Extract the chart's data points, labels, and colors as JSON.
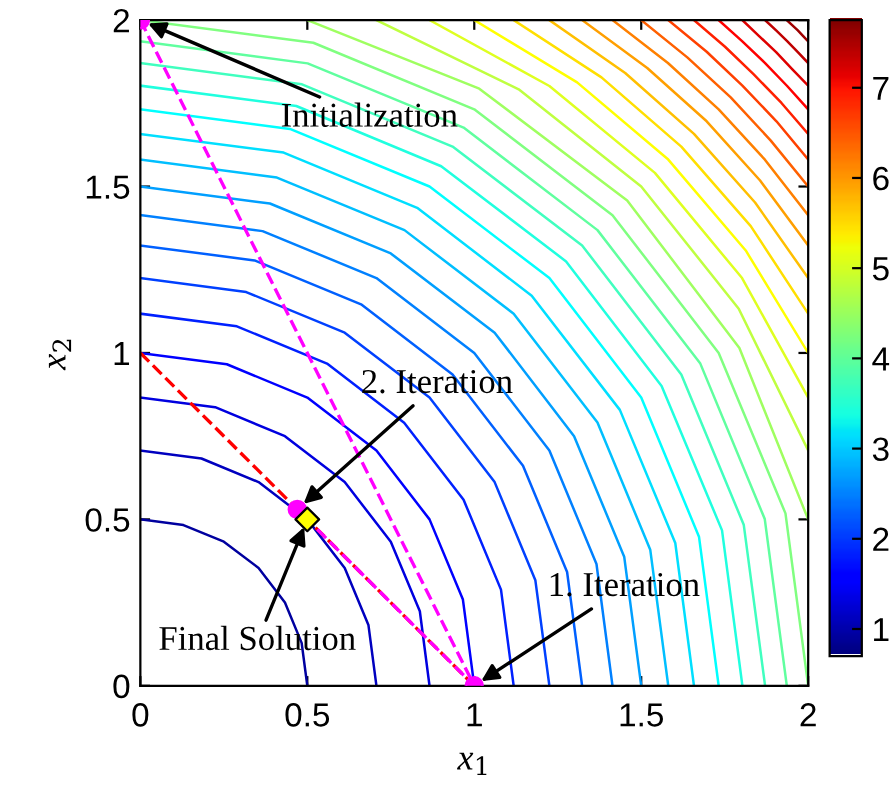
{
  "chart_data": {
    "type": "line",
    "xlabel": "x$_{1}$",
    "ylabel": "x$_{2}$",
    "xlim": [
      0,
      2
    ],
    "ylim": [
      0,
      2
    ],
    "xticks": [
      0,
      0.5,
      1,
      1.5,
      2
    ],
    "yticks": [
      0,
      0.5,
      1,
      1.5,
      2
    ],
    "grid": false,
    "clim": [
      0.7,
      7.75
    ],
    "cticks": [
      1,
      2,
      3,
      4,
      5,
      6,
      7
    ],
    "annotations": [
      {
        "text": "Initialization",
        "x": 0,
        "y": 2
      },
      {
        "text": "2. Iteration",
        "x": 0.47,
        "y": 0.53
      },
      {
        "text": "Final Solution",
        "x": 0.5,
        "y": 0.5
      },
      {
        "text": "1. Iteration",
        "x": 1,
        "y": 0
      }
    ],
    "series": [
      {
        "color": "#00009f",
        "x": [
          0.5,
          0.483,
          0.433,
          0.354,
          0.25,
          0.129,
          0
        ],
        "values": [
          0,
          0.129,
          0.25,
          0.354,
          0.433,
          0.483,
          0.5
        ]
      },
      {
        "color": "#0000bf",
        "x": [
          0.707,
          0.683,
          0.612,
          0.5,
          0.354,
          0.183,
          0
        ],
        "values": [
          0,
          0.183,
          0.354,
          0.5,
          0.612,
          0.683,
          0.707
        ]
      },
      {
        "color": "#0000df",
        "x": [
          0.866,
          0.837,
          0.75,
          0.612,
          0.433,
          0.224,
          0
        ],
        "values": [
          0,
          0.224,
          0.433,
          0.612,
          0.75,
          0.837,
          0.866
        ]
      },
      {
        "color": "#0000ff",
        "x": [
          1,
          0.966,
          0.866,
          0.707,
          0.5,
          0.259,
          0
        ],
        "values": [
          0,
          0.259,
          0.5,
          0.707,
          0.866,
          0.966,
          1
        ]
      },
      {
        "color": "#0020ff",
        "x": [
          1.118,
          1.08,
          0.968,
          0.79,
          0.559,
          0.289,
          0
        ],
        "values": [
          0,
          0.289,
          0.559,
          0.79,
          0.968,
          1.08,
          1.118
        ]
      },
      {
        "color": "#0040ff",
        "x": [
          1.225,
          1.183,
          1.061,
          0.866,
          0.612,
          0.317,
          0
        ],
        "values": [
          0,
          0.317,
          0.612,
          0.866,
          1.061,
          1.183,
          1.225
        ]
      },
      {
        "color": "#0060ff",
        "x": [
          1.323,
          1.278,
          1.146,
          0.935,
          0.661,
          0.342,
          0
        ],
        "values": [
          0,
          0.342,
          0.661,
          0.935,
          1.146,
          1.278,
          1.323
        ]
      },
      {
        "color": "#0080ff",
        "x": [
          1.414,
          1.366,
          1.225,
          1,
          0.707,
          0.366,
          0
        ],
        "values": [
          0,
          0.366,
          0.707,
          1,
          1.225,
          1.366,
          1.414
        ]
      },
      {
        "color": "#009fff",
        "x": [
          1.5,
          1.449,
          1.299,
          1.061,
          0.75,
          0.388,
          0
        ],
        "values": [
          0,
          0.388,
          0.75,
          1.061,
          1.299,
          1.449,
          1.5
        ]
      },
      {
        "color": "#00bfff",
        "x": [
          1.581,
          1.527,
          1.369,
          1.118,
          0.791,
          0.409,
          0
        ],
        "values": [
          0,
          0.409,
          0.791,
          1.118,
          1.369,
          1.527,
          1.581
        ]
      },
      {
        "color": "#00dfff",
        "x": [
          1.658,
          1.602,
          1.436,
          1.172,
          0.829,
          0.429,
          0
        ],
        "values": [
          0,
          0.429,
          0.829,
          1.172,
          1.436,
          1.602,
          1.658
        ]
      },
      {
        "color": "#00ffff",
        "x": [
          1.732,
          1.673,
          1.5,
          1.225,
          0.866,
          0.448,
          0
        ],
        "values": [
          0,
          0.448,
          0.866,
          1.225,
          1.5,
          1.673,
          1.732
        ]
      },
      {
        "color": "#20ffdf",
        "x": [
          1.803,
          1.742,
          1.561,
          1.275,
          0.901,
          0.467,
          0
        ],
        "values": [
          0,
          0.467,
          0.901,
          1.275,
          1.561,
          1.742,
          1.803
        ]
      },
      {
        "color": "#40ffbf",
        "x": [
          1.871,
          1.807,
          1.62,
          1.323,
          0.935,
          0.484,
          0
        ],
        "values": [
          0,
          0.484,
          0.935,
          1.323,
          1.62,
          1.807,
          1.871
        ]
      },
      {
        "color": "#60ff9f",
        "x": [
          1.936,
          1.87,
          1.677,
          1.369,
          0.968,
          0.501,
          0
        ],
        "values": [
          0,
          0.501,
          0.968,
          1.369,
          1.677,
          1.87,
          1.936
        ]
      },
      {
        "color": "#80ff80",
        "x": [
          2,
          1.932,
          1.732,
          1.414,
          1,
          0.518,
          0
        ],
        "values": [
          0,
          0.518,
          1,
          1.414,
          1.732,
          1.932,
          2
        ]
      },
      {
        "color": "#9fff60",
        "x": [
          2,
          1.794,
          1.458,
          1.015,
          0.5
        ],
        "values": [
          0.5,
          1.015,
          1.458,
          1.794,
          2
        ]
      },
      {
        "color": "#bfff40",
        "x": [
          2,
          1.792,
          1.5,
          1.133,
          0.707
        ],
        "values": [
          0.707,
          1.133,
          1.5,
          1.792,
          2
        ]
      },
      {
        "color": "#dfff20",
        "x": [
          2,
          1.802,
          1.541,
          1.225,
          0.866
        ],
        "values": [
          0.866,
          1.225,
          1.541,
          1.802,
          2
        ]
      },
      {
        "color": "#ffff00",
        "x": [
          2,
          1.813,
          1.581,
          1.308,
          1
        ],
        "values": [
          1,
          1.308,
          1.581,
          1.813,
          2
        ]
      },
      {
        "color": "#ffdf00",
        "x": [
          2,
          1.828,
          1.62,
          1.381,
          1.118
        ],
        "values": [
          1.118,
          1.381,
          1.62,
          1.828,
          2
        ]
      },
      {
        "color": "#ffbf00",
        "x": [
          2,
          1.841,
          1.658,
          1.452,
          1.225
        ],
        "values": [
          1.225,
          1.452,
          1.658,
          1.841,
          2
        ]
      },
      {
        "color": "#ff9f00",
        "x": [
          2,
          1.856,
          1.696,
          1.518,
          1.323
        ],
        "values": [
          1.323,
          1.518,
          1.696,
          1.856,
          2
        ]
      },
      {
        "color": "#ff8000",
        "x": [
          2,
          1.871,
          1.732,
          1.58,
          1.414
        ],
        "values": [
          1.414,
          1.58,
          1.732,
          1.871,
          2
        ]
      },
      {
        "color": "#ff6000",
        "x": [
          2,
          1.888,
          1.768,
          1.638,
          1.5
        ],
        "values": [
          1.5,
          1.638,
          1.768,
          1.888,
          2
        ]
      },
      {
        "color": "#ff4000",
        "x": [
          2,
          1.905,
          1.803,
          1.696,
          1.581
        ],
        "values": [
          1.581,
          1.696,
          1.803,
          1.905,
          2
        ]
      },
      {
        "color": "#ff2000",
        "x": [
          2,
          1.92,
          1.837,
          1.751,
          1.658
        ],
        "values": [
          1.658,
          1.751,
          1.837,
          1.92,
          2
        ]
      },
      {
        "color": "#ff0000",
        "x": [
          2,
          1.937,
          1.871,
          1.802,
          1.732
        ],
        "values": [
          1.732,
          1.802,
          1.871,
          1.937,
          2
        ]
      },
      {
        "color": "#df0000",
        "x": [
          2,
          1.952,
          1.904,
          1.853,
          1.803
        ],
        "values": [
          1.803,
          1.853,
          1.904,
          1.952,
          2
        ]
      },
      {
        "color": "#bf0000",
        "x": [
          2,
          1.969,
          1.937,
          1.904,
          1.871
        ],
        "values": [
          1.871,
          1.904,
          1.937,
          1.969,
          2
        ]
      },
      {
        "color": "#9f0000",
        "x": [
          2,
          1.985,
          1.969,
          1.952,
          1.936
        ],
        "values": [
          1.936,
          1.952,
          1.969,
          1.985,
          2
        ]
      },
      {
        "color": "#ff0000",
        "line_style": "dashed",
        "x": [
          0,
          1
        ],
        "values": [
          1,
          0
        ]
      },
      {
        "color": "#ff00ff",
        "line_style": "dashed",
        "marker": "circle",
        "x": [
          0,
          1,
          0.47
        ],
        "values": [
          2,
          0,
          0.53
        ]
      },
      {
        "type": "scatter",
        "color": "#ffff00",
        "marker": "diamond",
        "x": [
          0.5
        ],
        "values": [
          0.5
        ]
      }
    ]
  }
}
